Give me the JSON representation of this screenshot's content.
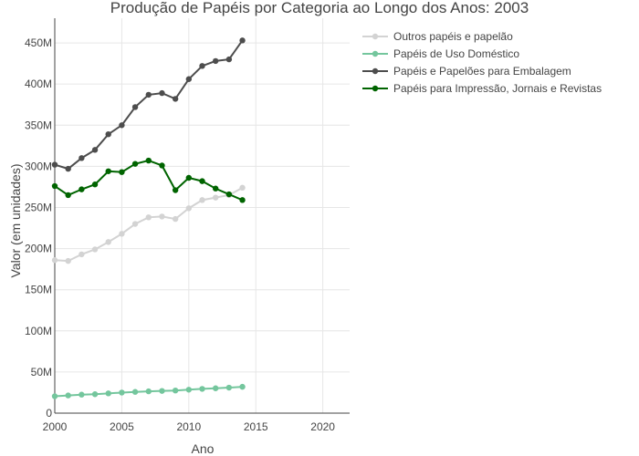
{
  "chart_data": {
    "type": "line",
    "title": "Produção de Papéis por Categoria ao Longo dos Anos: 2003",
    "xlabel": "Ano",
    "ylabel": "Valor (em unidades)",
    "xlim": [
      2000,
      2022
    ],
    "ylim": [
      0,
      480000000
    ],
    "xticks": [
      2000,
      2005,
      2010,
      2015,
      2020
    ],
    "xtick_labels": [
      "2000",
      "2005",
      "2010",
      "2015",
      "2020"
    ],
    "yticks": [
      0,
      50000000,
      100000000,
      150000000,
      200000000,
      250000000,
      300000000,
      350000000,
      400000000,
      450000000
    ],
    "ytick_labels": [
      "0",
      "50M",
      "100M",
      "150M",
      "200M",
      "250M",
      "300M",
      "350M",
      "400M",
      "450M"
    ],
    "grid": true,
    "legend_position": "top-right",
    "x": [
      2000,
      2001,
      2002,
      2003,
      2004,
      2005,
      2006,
      2007,
      2008,
      2009,
      2010,
      2011,
      2012,
      2013,
      2014
    ],
    "series": [
      {
        "name": "Outros papéis e papelão",
        "color": "#d3d3d3",
        "values": [
          186000000,
          185000000,
          193000000,
          199000000,
          208000000,
          218000000,
          230000000,
          238000000,
          239000000,
          236000000,
          249000000,
          259000000,
          262000000,
          265000000,
          274000000
        ]
      },
      {
        "name": "Papéis de Uso Doméstico",
        "color": "#74c69d",
        "values": [
          20500000,
          21500000,
          22500000,
          23000000,
          24000000,
          25000000,
          25800000,
          26500000,
          27000000,
          27500000,
          28500000,
          29500000,
          30200000,
          31000000,
          32000000
        ]
      },
      {
        "name": "Papéis e Papelões para Embalagem",
        "color": "#4d4d4d",
        "values": [
          302000000,
          297000000,
          310000000,
          320000000,
          339000000,
          350000000,
          372000000,
          387000000,
          389000000,
          382000000,
          406000000,
          422000000,
          428000000,
          430000000,
          453000000
        ]
      },
      {
        "name": "Papéis para Impressão, Jornais e Revistas",
        "color": "#006400",
        "values": [
          276000000,
          265000000,
          272000000,
          278000000,
          294000000,
          293000000,
          303000000,
          307000000,
          301000000,
          271000000,
          286000000,
          282000000,
          273000000,
          266000000,
          259000000
        ]
      }
    ]
  }
}
